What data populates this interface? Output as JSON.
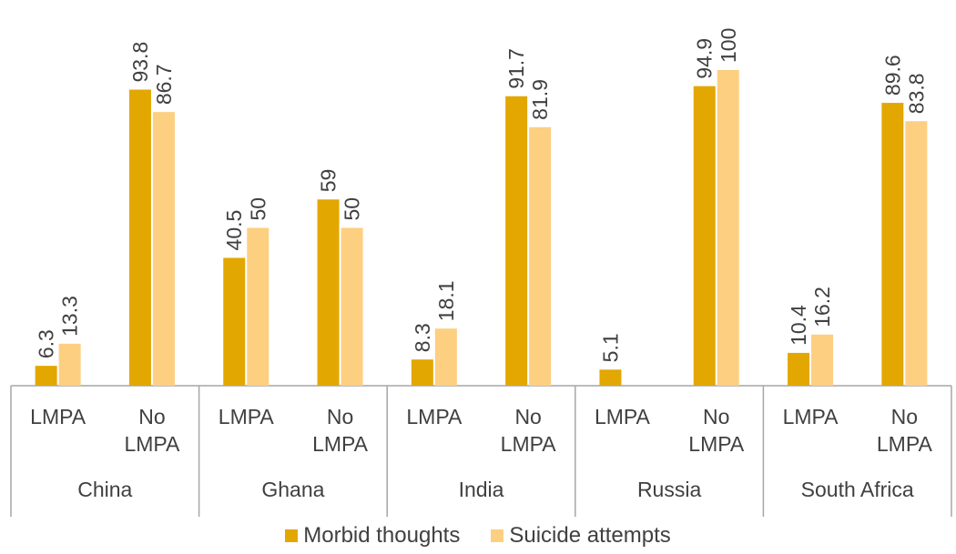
{
  "chart_data": {
    "type": "bar",
    "ylim": [
      0,
      100
    ],
    "groups": [
      {
        "country": "China",
        "categories": [
          "LMPA",
          "No\nLMPA"
        ]
      },
      {
        "country": "Ghana",
        "categories": [
          "LMPA",
          "No\nLMPA"
        ]
      },
      {
        "country": "India",
        "categories": [
          "LMPA",
          "No\nLMPA"
        ]
      },
      {
        "country": "Russia",
        "categories": [
          "LMPA",
          "No\nLMPA"
        ]
      },
      {
        "country": "South Africa",
        "categories": [
          "LMPA",
          "No\nLMPA"
        ]
      }
    ],
    "series": [
      {
        "name": "Morbid thoughts",
        "color": "#E3A702",
        "values": [
          6.3,
          93.8,
          40.5,
          59,
          8.3,
          91.7,
          5.1,
          94.9,
          10.4,
          89.6
        ],
        "labels": [
          "6.3",
          "93.8",
          "40.5",
          "59",
          "8.3",
          "91.7",
          "5.1",
          "94.9",
          "10.4",
          "89.6"
        ]
      },
      {
        "name": "Suicide attempts",
        "color": "#FDCF81",
        "values": [
          13.3,
          86.7,
          50,
          50,
          18.1,
          81.9,
          null,
          100,
          16.2,
          83.8
        ],
        "labels": [
          "13.3",
          "86.7",
          "50",
          "50",
          "18.1",
          "81.9",
          "",
          "100",
          "16.2",
          "83.8"
        ]
      }
    ],
    "legend": "bottom-center",
    "grid": false
  }
}
